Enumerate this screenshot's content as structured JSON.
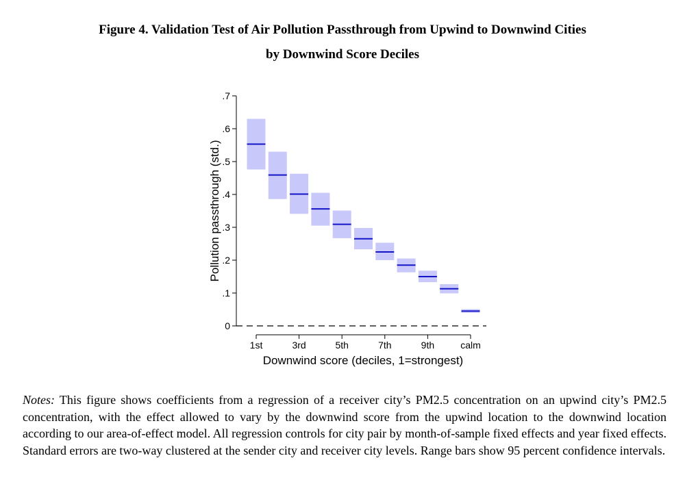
{
  "figure": {
    "title_line1": "Figure 4. Validation Test of Air Pollution Passthrough from Upwind to Downwind Cities",
    "title_line2": "by Downwind Score Deciles"
  },
  "chart_data": {
    "type": "range-bar",
    "title": "",
    "xlabel": "Downwind score (deciles, 1=strongest)",
    "ylabel": "Pollution passthrough (std.)",
    "categories": [
      "1st",
      "2nd",
      "3rd",
      "4th",
      "5th",
      "6th",
      "7th",
      "8th",
      "9th",
      "10th",
      "calm"
    ],
    "x_tick_labels": [
      "1st",
      "3rd",
      "5th",
      "7th",
      "9th",
      "calm"
    ],
    "y_ticks": [
      "0",
      ".1",
      ".2",
      ".3",
      ".4",
      ".5",
      ".6",
      ".7"
    ],
    "ylim": [
      0,
      0.7
    ],
    "reference_line": 0,
    "series": [
      {
        "estimate": [
          0.553,
          0.459,
          0.401,
          0.356,
          0.309,
          0.265,
          0.225,
          0.185,
          0.15,
          0.113,
          0.045
        ],
        "ci_lower": [
          0.476,
          0.386,
          0.341,
          0.305,
          0.267,
          0.233,
          0.2,
          0.163,
          0.133,
          0.099,
          0.04
        ],
        "ci_upper": [
          0.63,
          0.53,
          0.463,
          0.405,
          0.351,
          0.298,
          0.253,
          0.205,
          0.168,
          0.127,
          0.051
        ]
      }
    ],
    "colors": {
      "range": "#c8c8fa",
      "estimate": "#1414c8",
      "axis": "#000000"
    },
    "grid": false
  },
  "notes": {
    "label": "Notes:",
    "text": " This figure shows coefficients from a regression of a receiver city’s PM2.5 concentration on an upwind city’s PM2.5 concentration, with the effect allowed to vary by the downwind score from the upwind location to the downwind location according to our area-of-effect model. All regression controls for city pair by month-of-sample fixed effects and year fixed effects. Standard errors are two-way clustered at the sender city and receiver city levels. Range bars show 95 percent confidence intervals."
  }
}
